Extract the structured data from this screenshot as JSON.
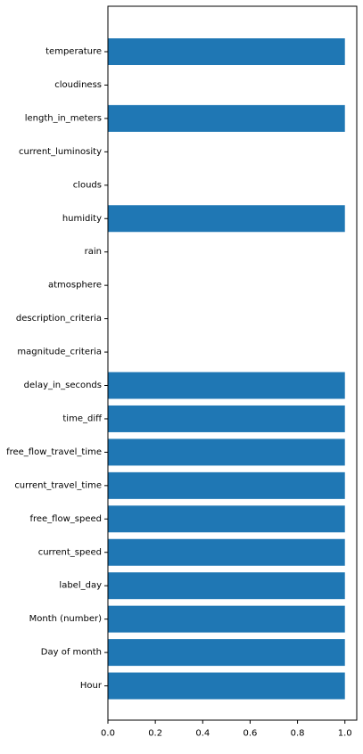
{
  "chart_data": {
    "type": "bar",
    "orientation": "horizontal",
    "color": "#1f77b4",
    "categories": [
      "temperature",
      "cloudiness",
      "length_in_meters",
      "current_luminosity",
      "clouds",
      "humidity",
      "rain",
      "atmosphere",
      "description_criteria",
      "magnitude_criteria",
      "delay_in_seconds",
      "time_diff",
      "free_flow_travel_time",
      "current_travel_time",
      "free_flow_speed",
      "current_speed",
      "label_day",
      "Month (number)",
      "Day of month",
      "Hour"
    ],
    "values": [
      1,
      0,
      1,
      0,
      0,
      1,
      0,
      0,
      0,
      0,
      1,
      1,
      1,
      1,
      1,
      1,
      1,
      1,
      1,
      1
    ],
    "xlim": [
      0,
      1.05
    ],
    "xticks": [
      0.0,
      0.2,
      0.4,
      0.6,
      0.8,
      1.0
    ],
    "xtick_labels": [
      "0.0",
      "0.2",
      "0.4",
      "0.6",
      "0.8",
      "1.0"
    ],
    "grid": false,
    "title": "",
    "xlabel": "",
    "ylabel": ""
  }
}
